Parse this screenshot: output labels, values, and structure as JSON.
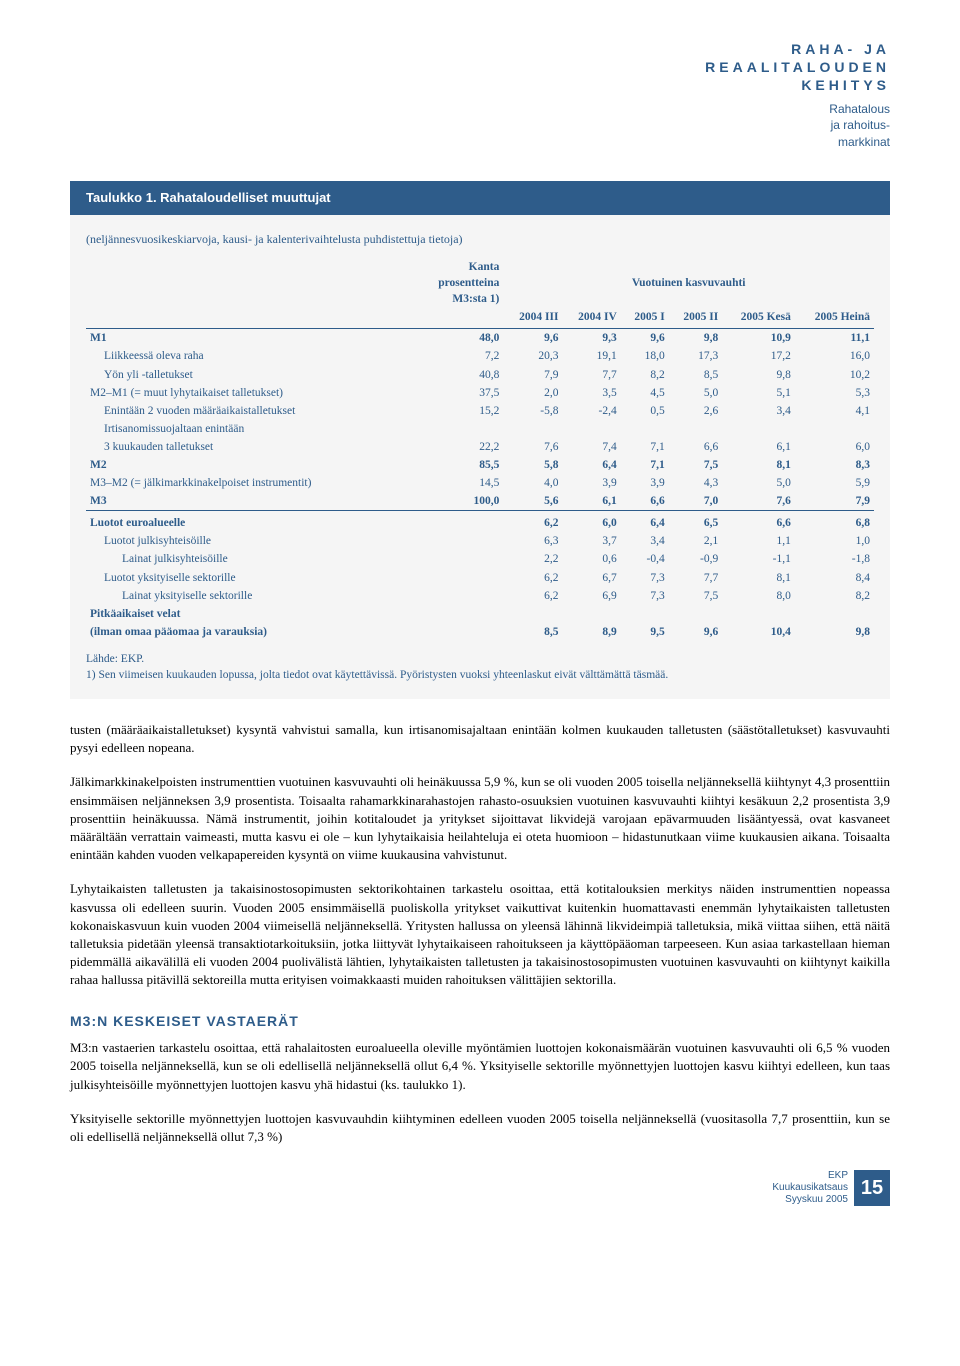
{
  "header": {
    "section_line1": "RAHA- JA",
    "section_line2": "REAALITALOUDEN",
    "section_line3": "KEHITYS",
    "sub_line1": "Rahatalous",
    "sub_line2": "ja rahoitus-",
    "sub_line3": "markkinat"
  },
  "table": {
    "title": "Taulukko 1. Rahataloudelliset muuttujat",
    "subtitle": "(neljännesvuosikeskiarvoja, kausi- ja kalenterivaihtelusta puhdistettuja tietoja)",
    "col_header_left_line1": "Kanta",
    "col_header_left_line2": "prosentteina",
    "col_header_left_line3": "M3:sta 1)",
    "col_header_right": "Vuotuinen kasvuvauhti",
    "cols": [
      "2004 III",
      "2004 IV",
      "2005 I",
      "2005 II",
      "2005 Kesä",
      "2005 Heinä"
    ],
    "rows": [
      {
        "label": "M1",
        "kanta": "48,0",
        "v": [
          "9,6",
          "9,3",
          "9,6",
          "9,8",
          "10,9",
          "11,1"
        ],
        "bold": true,
        "indent": 0
      },
      {
        "label": "Liikkeessä oleva raha",
        "kanta": "7,2",
        "v": [
          "20,3",
          "19,1",
          "18,0",
          "17,3",
          "17,2",
          "16,0"
        ],
        "indent": 1
      },
      {
        "label": "Yön yli -talletukset",
        "kanta": "40,8",
        "v": [
          "7,9",
          "7,7",
          "8,2",
          "8,5",
          "9,8",
          "10,2"
        ],
        "indent": 1
      },
      {
        "label": "M2–M1 (= muut lyhytaikaiset talletukset)",
        "kanta": "37,5",
        "v": [
          "2,0",
          "3,5",
          "4,5",
          "5,0",
          "5,1",
          "5,3"
        ],
        "indent": 0
      },
      {
        "label": "Enintään 2 vuoden määräaikaistalletukset",
        "kanta": "15,2",
        "v": [
          "-5,8",
          "-2,4",
          "0,5",
          "2,6",
          "3,4",
          "4,1"
        ],
        "indent": 1
      },
      {
        "label": "Irtisanomissuojaltaan enintään",
        "kanta": "",
        "v": [
          "",
          "",
          "",
          "",
          "",
          ""
        ],
        "indent": 1
      },
      {
        "label": "3 kuukauden talletukset",
        "kanta": "22,2",
        "v": [
          "7,6",
          "7,4",
          "7,1",
          "6,6",
          "6,1",
          "6,0"
        ],
        "indent": 1
      },
      {
        "label": "M2",
        "kanta": "85,5",
        "v": [
          "5,8",
          "6,4",
          "7,1",
          "7,5",
          "8,1",
          "8,3"
        ],
        "bold": true,
        "indent": 0
      },
      {
        "label": "M3–M2 (= jälkimarkkinakelpoiset instrumentit)",
        "kanta": "14,5",
        "v": [
          "4,0",
          "3,9",
          "3,9",
          "4,3",
          "5,0",
          "5,9"
        ],
        "indent": 0
      },
      {
        "label": "M3",
        "kanta": "100,0",
        "v": [
          "5,6",
          "6,1",
          "6,6",
          "7,0",
          "7,6",
          "7,9"
        ],
        "bold": true,
        "indent": 0
      }
    ],
    "rows2": [
      {
        "label": "Luotot euroalueelle",
        "v": [
          "6,2",
          "6,0",
          "6,4",
          "6,5",
          "6,6",
          "6,8"
        ],
        "bold": true,
        "indent": 0
      },
      {
        "label": "Luotot julkisyhteisöille",
        "v": [
          "6,3",
          "3,7",
          "3,4",
          "2,1",
          "1,1",
          "1,0"
        ],
        "indent": 1
      },
      {
        "label": "Lainat julkisyhteisöille",
        "v": [
          "2,2",
          "0,6",
          "-0,4",
          "-0,9",
          "-1,1",
          "-1,8"
        ],
        "indent": 2
      },
      {
        "label": "Luotot yksityiselle sektorille",
        "v": [
          "6,2",
          "6,7",
          "7,3",
          "7,7",
          "8,1",
          "8,4"
        ],
        "indent": 1
      },
      {
        "label": "Lainat yksityiselle sektorille",
        "v": [
          "6,2",
          "6,9",
          "7,3",
          "7,5",
          "8,0",
          "8,2"
        ],
        "indent": 2
      },
      {
        "label": "Pitkäaikaiset velat",
        "v": [
          "",
          "",
          "",
          "",
          "",
          ""
        ],
        "bold": true,
        "indent": 0
      },
      {
        "label": "(ilman omaa pääomaa ja varauksia)",
        "v": [
          "8,5",
          "8,9",
          "9,5",
          "9,6",
          "10,4",
          "9,8"
        ],
        "bold": true,
        "indent": 0
      }
    ],
    "source": "Lähde: EKP.",
    "note": "1) Sen viimeisen kuukauden lopussa, jolta tiedot ovat käytettävissä. Pyöristysten vuoksi yhteenlaskut eivät välttämättä täsmää."
  },
  "body": {
    "p1": "tusten (määräaikaistalletukset) kysyntä vahvistui samalla, kun irtisanomisajaltaan enintään kolmen kuukauden talletusten (säästötalletukset) kasvuvauhti pysyi edelleen nopeana.",
    "p2": "Jälkimarkkinakelpoisten instrumenttien vuotuinen kasvuvauhti oli heinäkuussa 5,9 %, kun se oli vuoden 2005 toisella neljänneksellä kiihtynyt 4,3 prosenttiin ensimmäisen neljänneksen 3,9 prosentista. Toisaalta rahamarkkinarahastojen rahasto-osuuksien vuotuinen kasvuvauhti kiihtyi kesäkuun 2,2 prosentista 3,9 prosenttiin heinäkuussa. Nämä instrumentit, joihin kotitaloudet ja yritykset sijoittavat likvidejä varojaan epävarmuuden lisääntyessä, ovat kasvaneet määrältään verrattain vaimeasti, mutta kasvu ei ole – kun lyhytaikaisia heilahteluja ei oteta huomioon – hidastunutkaan viime kuukausien aikana. Toisaalta enintään kahden vuoden velkapapereiden kysyntä on viime kuukausina vahvistunut.",
    "p3": "Lyhytaikaisten talletusten ja takaisinostosopimusten sektorikohtainen tarkastelu osoittaa, että kotitalouksien merkitys näiden instrumenttien nopeassa kasvussa oli edelleen suurin. Vuoden 2005 ensimmäisellä puoliskolla yritykset vaikuttivat kuitenkin huomattavasti enemmän lyhytaikaisten talletusten kokonaiskasvuun kuin vuoden 2004 viimeisellä neljänneksellä. Yritysten hallussa on yleensä lähinnä likvideimpiä talletuksia, mikä viittaa siihen, että näitä talletuksia pidetään yleensä transaktiotarkoituksiin, jotka liittyvät lyhytaikaiseen rahoitukseen ja käyttöpääoman tarpeeseen. Kun asiaa tarkastellaan hieman pidemmällä aikavälillä eli vuoden 2004 puolivälistä lähtien, lyhytaikaisten talletusten ja takaisinostosopimusten vuotuinen kasvuvauhti on kiihtynyt kaikilla rahaa hallussa pitävillä sektoreilla mutta erityisen voimakkaasti muiden rahoituksen välittäjien sektorilla.",
    "h1": "M3:N KESKEISET VASTAERÄT",
    "p4": "M3:n vastaerien tarkastelu osoittaa, että rahalaitosten euroalueella oleville myöntämien luottojen kokonaismäärän vuotuinen kasvuvauhti oli 6,5 % vuoden 2005 toisella neljänneksellä, kun se oli edellisellä neljänneksellä ollut 6,4 %. Yksityiselle sektorille myönnettyjen luottojen kasvu kiihtyi edelleen, kun taas julkisyhteisöille myönnettyjen luottojen kasvu yhä hidastui (ks. taulukko 1).",
    "p5": "Yksityiselle sektorille myönnettyjen luottojen kasvuvauhdin kiihtyminen edelleen vuoden 2005 toisella neljänneksellä (vuositasolla 7,7 prosenttiin, kun se oli edellisellä neljänneksellä ollut 7,3 %)"
  },
  "footer": {
    "org": "EKP",
    "pub": "Kuukausikatsaus",
    "date": "Syyskuu 2005",
    "page": "15"
  }
}
